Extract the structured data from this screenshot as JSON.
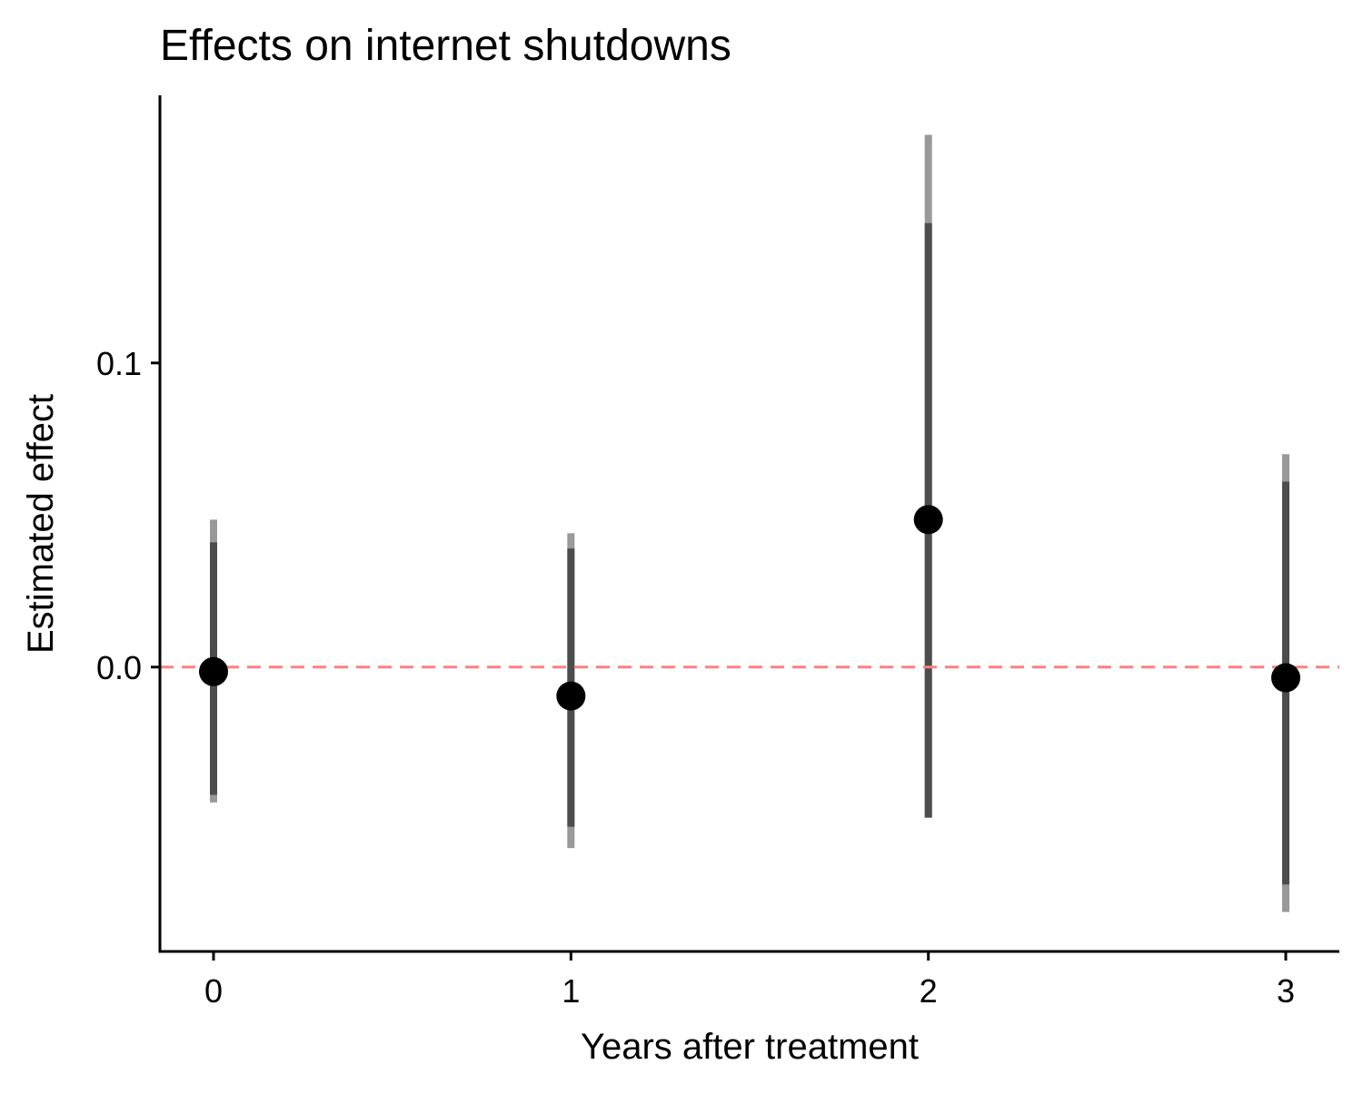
{
  "chart_data": {
    "type": "scatter",
    "title": "Effects on internet shutdowns",
    "xlabel": "Years after treatment",
    "ylabel": "Estimated effect",
    "x_ticks": [
      0,
      1,
      2,
      3
    ],
    "x_tick_labels": [
      "0",
      "1",
      "2",
      "3"
    ],
    "y_ticks": [
      0.0,
      0.1
    ],
    "y_tick_labels": [
      "0.0",
      "0.1"
    ],
    "xlim": [
      -0.15,
      3.15
    ],
    "ylim": [
      -0.0935,
      0.188
    ],
    "reference_line": {
      "y": 0,
      "style": "dashed",
      "color": "#ff7f7f"
    },
    "grid": false,
    "points": [
      {
        "x": 0,
        "estimate": -0.0015,
        "ci_inner": [
          -0.042,
          0.041
        ],
        "ci_outer": [
          -0.0445,
          0.0485
        ]
      },
      {
        "x": 1,
        "estimate": -0.0095,
        "ci_inner": [
          -0.0525,
          0.039
        ],
        "ci_outer": [
          -0.0595,
          0.044
        ]
      },
      {
        "x": 2,
        "estimate": 0.0485,
        "ci_inner": [
          -0.0495,
          0.146
        ],
        "ci_outer": [
          -0.0495,
          0.175
        ]
      },
      {
        "x": 3,
        "estimate": -0.0035,
        "ci_inner": [
          -0.0715,
          0.061
        ],
        "ci_outer": [
          -0.0805,
          0.07
        ]
      }
    ],
    "colors": {
      "point": "#000000",
      "ci_inner": "#4d4d4d",
      "ci_outer": "#999999",
      "axis": "#000000"
    }
  }
}
